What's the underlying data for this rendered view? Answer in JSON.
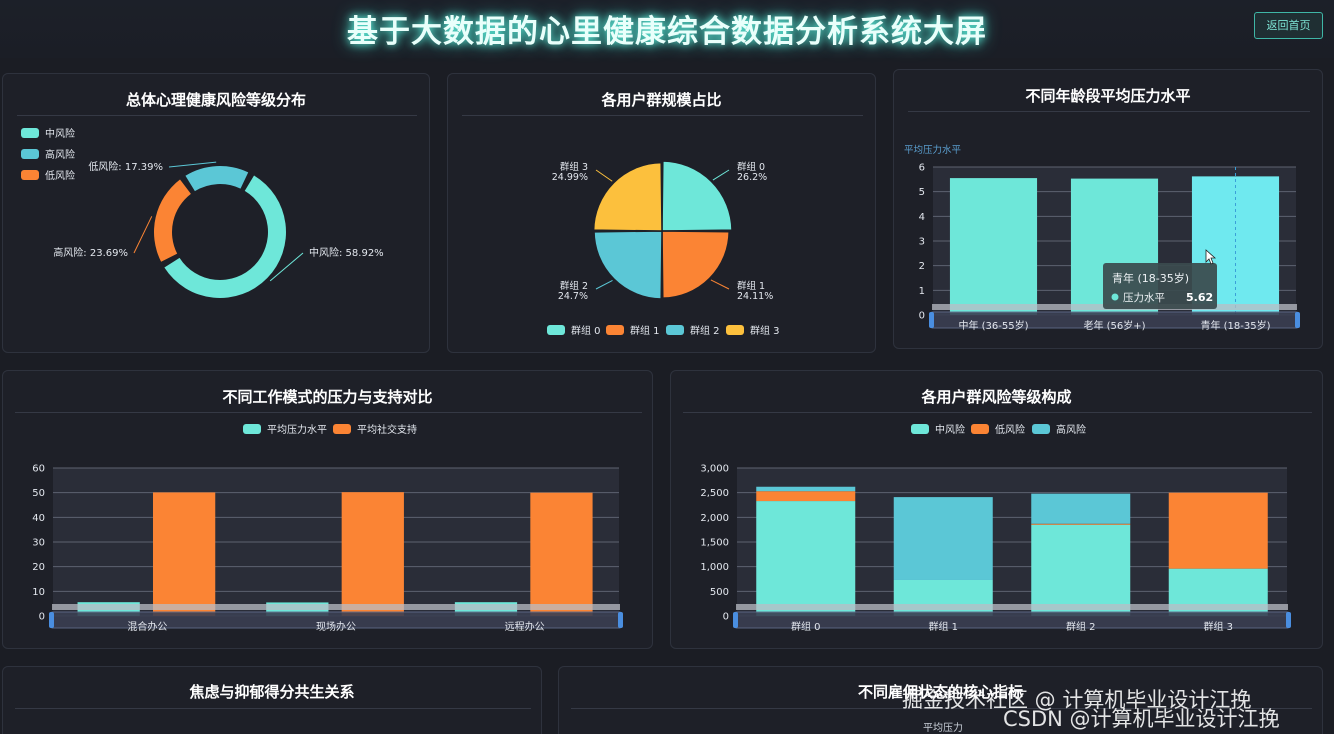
{
  "page": {
    "title": "基于大数据的心里健康综合数据分析系统大屏",
    "back_button": "返回首页",
    "colors": {
      "teal": "#6ee7d9",
      "orange": "#fb8434",
      "cyan": "#5bc7d6",
      "yellow": "#fcc03d",
      "bg": "#1b1d24"
    }
  },
  "panels": {
    "risk": {
      "title": "总体心理健康风险等级分布"
    },
    "groups": {
      "title": "各用户群规模占比"
    },
    "age": {
      "title": "不同年龄段平均压力水平"
    },
    "work": {
      "title": "不同工作模式的压力与支持对比"
    },
    "grouprisk": {
      "title": "各用户群风险等级构成"
    },
    "anxiety": {
      "title": "焦虑与抑郁得分共生关系"
    },
    "employment": {
      "title": "不同雇佣状态的核心指标",
      "axis_hint": "平均压力"
    }
  },
  "chart_data": [
    {
      "id": "risk",
      "type": "pie",
      "donut": true,
      "legend": [
        "中风险",
        "高风险",
        "低风险"
      ],
      "slices": [
        {
          "name": "中风险",
          "value": 58.92,
          "label": "中风险: 58.92%",
          "color": "#6ee7d9"
        },
        {
          "name": "高风险",
          "value": 23.69,
          "label": "高风险: 23.69%",
          "color": "#fb8434"
        },
        {
          "name": "低风险",
          "value": 17.39,
          "label": "低风险: 17.39%",
          "color": "#5bc7d6"
        }
      ]
    },
    {
      "id": "groups",
      "type": "pie",
      "rose": true,
      "legend": [
        "群组 0",
        "群组 1",
        "群组 2",
        "群组 3"
      ],
      "slices": [
        {
          "name": "群组 0",
          "value": 26.2,
          "label_name": "群组 0",
          "label_pct": "26.2%",
          "color": "#6ee7d9"
        },
        {
          "name": "群组 1",
          "value": 24.11,
          "label_name": "群组 1",
          "label_pct": "24.11%",
          "color": "#fb8434"
        },
        {
          "name": "群组 2",
          "value": 24.7,
          "label_name": "群组 2",
          "label_pct": "24.7%",
          "color": "#5bc7d6"
        },
        {
          "name": "群组 3",
          "value": 24.99,
          "label_name": "群组 3",
          "label_pct": "24.99%",
          "color": "#fcc03d"
        }
      ]
    },
    {
      "id": "age",
      "type": "bar",
      "ylabel": "平均压力水平",
      "ylim": [
        0,
        6
      ],
      "yticks": [
        "0",
        "1",
        "2",
        "3",
        "4",
        "5",
        "6"
      ],
      "categories": [
        "中年 (36-55岁)",
        "老年 (56岁+)",
        "青年 (18-35岁)"
      ],
      "values": [
        5.55,
        5.53,
        5.62
      ],
      "tooltip": {
        "title": "青年 (18-35岁)",
        "series": "压力水平",
        "value": "5.62"
      }
    },
    {
      "id": "work",
      "type": "bar",
      "legend": [
        "平均压力水平",
        "平均社交支持"
      ],
      "ylim": [
        0,
        60
      ],
      "yticks": [
        "0",
        "10",
        "20",
        "30",
        "40",
        "50",
        "60"
      ],
      "categories": [
        "混合办公",
        "现场办公",
        "远程办公"
      ],
      "series": [
        {
          "name": "平均压力水平",
          "values": [
            5.6,
            5.5,
            5.6
          ],
          "color": "#6ee7d9"
        },
        {
          "name": "平均社交支持",
          "values": [
            50.1,
            50.2,
            50.0
          ],
          "color": "#fb8434"
        }
      ]
    },
    {
      "id": "grouprisk",
      "type": "bar",
      "stacked": true,
      "legend": [
        "中风险",
        "低风险",
        "高风险"
      ],
      "ylim": [
        0,
        3000
      ],
      "yticks": [
        "0",
        "500",
        "1,000",
        "1,500",
        "2,000",
        "2,500",
        "3,000"
      ],
      "categories": [
        "群组 0",
        "群组 1",
        "群组 2",
        "群组 3"
      ],
      "series": [
        {
          "name": "中风险",
          "values": [
            2330,
            730,
            1850,
            960
          ],
          "color": "#6ee7d9"
        },
        {
          "name": "低风险",
          "values": [
            200,
            0,
            20,
            1540
          ],
          "color": "#fb8434"
        },
        {
          "name": "高风险",
          "values": [
            90,
            1680,
            610,
            0
          ],
          "color": "#5bc7d6"
        }
      ]
    }
  ],
  "watermark": {
    "line1": "掘金技术社区 @ 计算机毕业设计江挽",
    "line2": "CSDN @计算机毕业设计江挽"
  }
}
